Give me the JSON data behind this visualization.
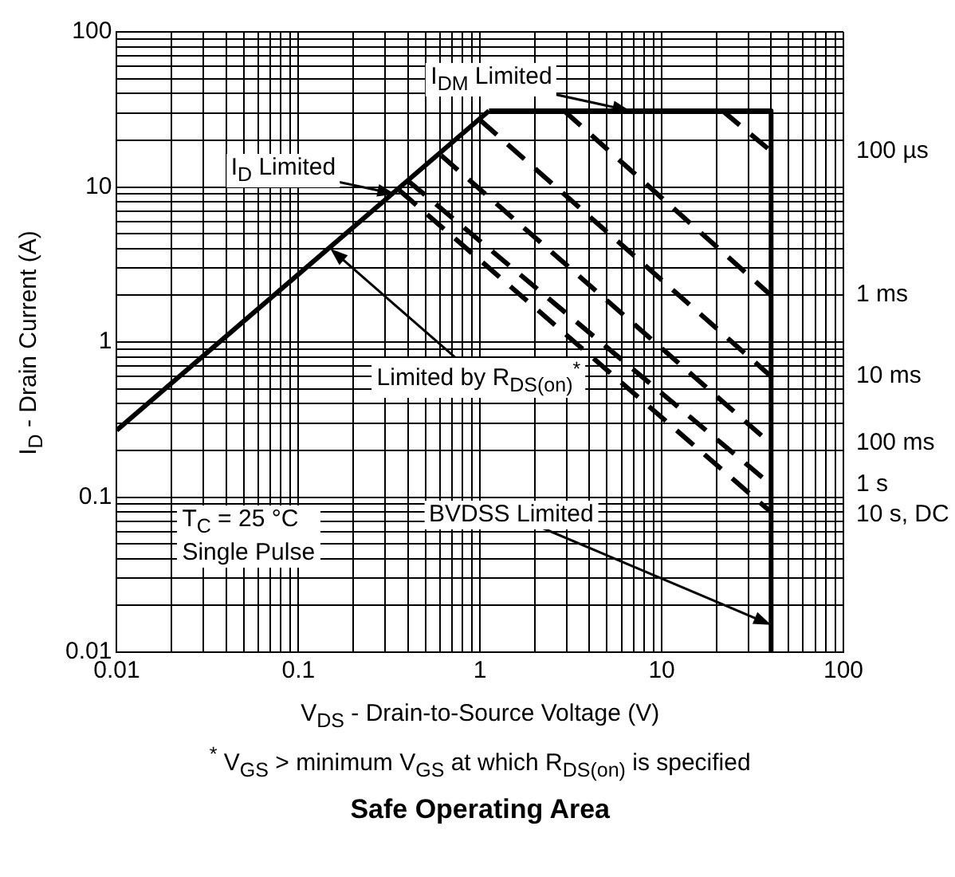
{
  "chart_data": {
    "type": "line",
    "title": "Safe Operating Area",
    "xlabel": "V$_{DS}$ - Drain-to-Source Voltage (V)",
    "ylabel": "I$_{D}$ - Drain Current (A)",
    "log": "xy",
    "xlim": [
      0.01,
      100
    ],
    "ylim": [
      0.01,
      100
    ],
    "grid": true,
    "marker": "none",
    "xticks": [
      0.01,
      {
        "value": 0.02,
        "label": null
      },
      {
        "value": 0.03,
        "label": null
      },
      {
        "value": 0.04,
        "label": null
      },
      {
        "value": 0.05,
        "label": null
      },
      {
        "value": 0.06,
        "label": null
      },
      {
        "value": 0.07,
        "label": null
      },
      {
        "value": 0.08,
        "label": null
      },
      {
        "value": 0.09,
        "label": null
      },
      0.1,
      {
        "value": 0.2,
        "label": null
      },
      {
        "value": 0.3,
        "label": null
      },
      {
        "value": 0.4,
        "label": null
      },
      {
        "value": 0.5,
        "label": null
      },
      {
        "value": 0.6,
        "label": null
      },
      {
        "value": 0.7,
        "label": null
      },
      {
        "value": 0.8,
        "label": null
      },
      {
        "value": 0.9,
        "label": null
      },
      1,
      {
        "value": 2,
        "label": null
      },
      {
        "value": 3,
        "label": null
      },
      {
        "value": 4,
        "label": null
      },
      {
        "value": 5,
        "label": null
      },
      {
        "value": 6,
        "label": null
      },
      {
        "value": 7,
        "label": null
      },
      {
        "value": 8,
        "label": null
      },
      {
        "value": 9,
        "label": null
      },
      10,
      {
        "value": 20,
        "label": null
      },
      {
        "value": 30,
        "label": null
      },
      {
        "value": 40,
        "label": null
      },
      {
        "value": 50,
        "label": null
      },
      {
        "value": 60,
        "label": null
      },
      {
        "value": 70,
        "label": null
      },
      {
        "value": 80,
        "label": null
      },
      {
        "value": 90,
        "label": null
      },
      100
    ],
    "yticks": [
      0.01,
      {
        "value": 0.02,
        "label": null
      },
      {
        "value": 0.03,
        "label": null
      },
      {
        "value": 0.04,
        "label": null
      },
      {
        "value": 0.05,
        "label": null
      },
      {
        "value": 0.06,
        "label": null
      },
      {
        "value": 0.07,
        "label": null
      },
      {
        "value": 0.08,
        "label": null
      },
      {
        "value": 0.09,
        "label": null
      },
      0.1,
      {
        "value": 0.2,
        "label": null
      },
      {
        "value": 0.3,
        "label": null
      },
      {
        "value": 0.4,
        "label": null
      },
      {
        "value": 0.5,
        "label": null
      },
      {
        "value": 0.6,
        "label": null
      },
      {
        "value": 0.7,
        "label": null
      },
      {
        "value": 0.8,
        "label": null
      },
      {
        "value": 0.9,
        "label": null
      },
      1,
      {
        "value": 2,
        "label": null
      },
      {
        "value": 3,
        "label": null
      },
      {
        "value": 4,
        "label": null
      },
      {
        "value": 5,
        "label": null
      },
      {
        "value": 6,
        "label": null
      },
      {
        "value": 7,
        "label": null
      },
      {
        "value": 8,
        "label": null
      },
      {
        "value": 9,
        "label": null
      },
      10,
      {
        "value": 20,
        "label": null
      },
      {
        "value": 30,
        "label": null
      },
      {
        "value": 40,
        "label": null
      },
      {
        "value": 50,
        "label": null
      },
      {
        "value": 60,
        "label": null
      },
      {
        "value": 70,
        "label": null
      },
      {
        "value": 80,
        "label": null
      },
      {
        "value": 90,
        "label": null
      },
      100
    ],
    "series": [
      {
        "type": "line",
        "color": "#000000",
        "line_style": "solid",
        "x": [
          0.01,
          1.12
        ],
        "values": [
          0.27,
          31
        ]
      },
      {
        "type": "line",
        "color": "#000000",
        "line_style": "solid",
        "x": [
          1.12,
          40
        ],
        "values": [
          31,
          31
        ]
      },
      {
        "type": "line",
        "color": "#000000",
        "line_style": "solid",
        "x": [
          40,
          40
        ],
        "values": [
          31,
          0.01
        ]
      },
      {
        "name": "100 µs",
        "type": "line",
        "color": "#000000",
        "line_style": "dashed",
        "x": [
          21.6,
          40
        ],
        "values": [
          31,
          17
        ]
      },
      {
        "name": "1 ms",
        "type": "line",
        "color": "#000000",
        "line_style": "dashed",
        "x": [
          2.9,
          40
        ],
        "values": [
          31,
          2
        ]
      },
      {
        "name": "10 ms",
        "type": "line",
        "color": "#000000",
        "line_style": "dashed",
        "x": [
          1.0,
          40
        ],
        "values": [
          27,
          0.6
        ]
      },
      {
        "name": "100 ms",
        "type": "line",
        "color": "#000000",
        "line_style": "dashed",
        "x": [
          0.61,
          40
        ],
        "values": [
          16,
          0.22
        ]
      },
      {
        "name": "1 s",
        "type": "line",
        "color": "#000000",
        "line_style": "dashed",
        "x": [
          0.4,
          40
        ],
        "values": [
          11,
          0.12
        ]
      },
      {
        "name": "10 s, DC",
        "type": "line",
        "color": "#000000",
        "line_style": "dashed",
        "x": [
          0.36,
          40
        ],
        "values": [
          9.5,
          0.08
        ]
      }
    ],
    "annotations": [
      {
        "text": "I$_{DM}$ Limited",
        "x": 6.7,
        "y": 31
      },
      {
        "text": "I$_{D}$ Limited",
        "x": 0.34,
        "y": 9
      },
      {
        "text": "Limited by R$_{DS(on)}$$^{*}$",
        "x": 0.15,
        "y": 4
      },
      {
        "text": "BVDSS Limited",
        "x": 40,
        "y": 0.015
      },
      "T$_{C}$ = 25 °C\nSingle Pulse",
      "$^{*}$ V$_{GS}$ > minimum V$_{GS}$ at which R$_{DS(on)}$ is specified"
    ]
  }
}
